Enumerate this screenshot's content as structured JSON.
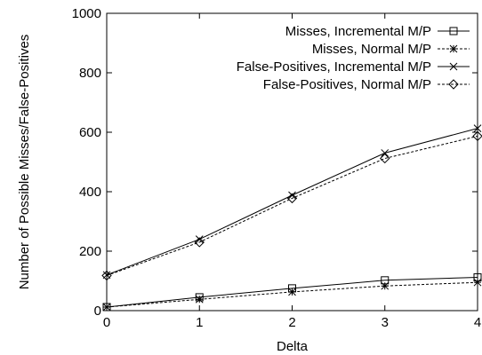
{
  "chart_data": {
    "type": "line",
    "xlabel": "Delta",
    "ylabel": "Number of Possible Misses/False-Positives",
    "xlim": [
      0,
      4
    ],
    "ylim": [
      0,
      1000
    ],
    "x_ticks": [
      0,
      1,
      2,
      3,
      4
    ],
    "y_ticks": [
      0,
      200,
      400,
      600,
      800,
      1000
    ],
    "grid": false,
    "legend_position": "top-right",
    "x": [
      0,
      1,
      2,
      3,
      4
    ],
    "series": [
      {
        "name": "Misses, Incremental M/P",
        "marker": "square",
        "line": "solid",
        "values": [
          12,
          45,
          75,
          102,
          112
        ]
      },
      {
        "name": "Misses, Normal M/P",
        "marker": "asterisk",
        "line": "dashed",
        "values": [
          12,
          38,
          63,
          83,
          95
        ]
      },
      {
        "name": "False-Positives, Incremental M/P",
        "marker": "cross",
        "line": "solid",
        "values": [
          120,
          240,
          388,
          530,
          613
        ]
      },
      {
        "name": "False-Positives, Normal M/P",
        "marker": "diamond",
        "line": "dashed",
        "values": [
          118,
          230,
          378,
          512,
          587
        ]
      }
    ]
  }
}
